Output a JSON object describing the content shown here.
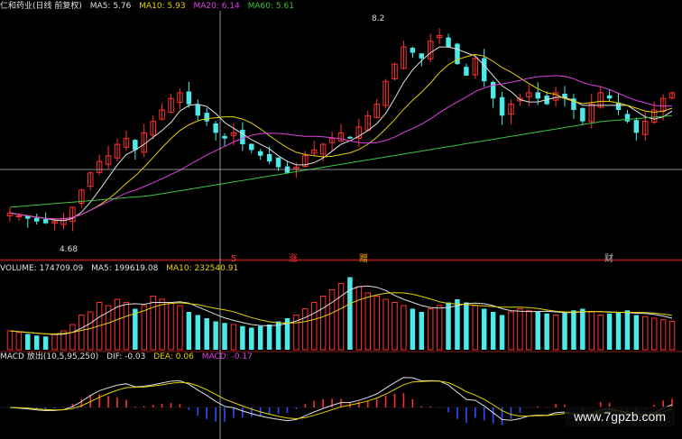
{
  "header": {
    "stock_name": "仁和药业",
    "period": "(日线 前复权)",
    "ma5": "MA5: 5.76",
    "ma10": "MA10: 5.93",
    "ma20": "MA20: 6.14",
    "ma60": "MA60: 5.61"
  },
  "volume_header": {
    "volume": "VOLUME: 174709.09",
    "ma5": "MA5: 199619.08",
    "ma10": "MA10: 232540.91"
  },
  "macd_header": {
    "name": "MACD 放出(10,5,95,250)",
    "dif": "DIF: -0.03",
    "dea": "DEA: 0.06",
    "macd": "MACD: -0.17"
  },
  "markers": {
    "high_label": "8.2",
    "low_label": "4.68",
    "event_1": "5",
    "event_2": "涨",
    "event_3": "赠",
    "event_4": "财"
  },
  "watermark": "www.7gpzb.com",
  "colors": {
    "up": "#ff3030",
    "down": "#4fe8e8",
    "ma5": "#e0e0e0",
    "ma10": "#e6d200",
    "ma20": "#e040e0",
    "ma60": "#3ec23e",
    "crosshair": "#bbbbbb",
    "grid": "#8b1a1a"
  },
  "chart_data": {
    "type": "candlestick",
    "panels": [
      "price",
      "volume",
      "macd"
    ],
    "price_range_seen": {
      "low": 4.68,
      "high": 8.2
    },
    "close_approx": [
      4.9,
      4.85,
      4.8,
      4.75,
      4.72,
      4.75,
      4.8,
      5.0,
      5.3,
      5.6,
      5.8,
      5.9,
      6.1,
      6.2,
      6.0,
      6.3,
      6.5,
      6.7,
      6.9,
      7.0,
      6.8,
      6.6,
      6.5,
      6.3,
      6.2,
      6.3,
      6.1,
      6.0,
      5.9,
      5.8,
      5.7,
      5.6,
      5.7,
      5.9,
      6.0,
      6.1,
      6.2,
      6.3,
      6.2,
      6.4,
      6.6,
      6.8,
      7.2,
      7.5,
      7.8,
      7.7,
      7.6,
      7.9,
      8.0,
      7.8,
      7.5,
      7.3,
      7.6,
      7.2,
      6.9,
      6.6,
      6.8,
      6.9,
      7.0,
      6.9,
      6.8,
      7.0,
      6.9,
      6.7,
      6.5,
      6.8,
      7.0,
      6.9,
      6.7,
      6.5,
      6.3,
      6.5,
      6.7,
      6.9,
      7.0
    ],
    "volume_approx": [
      60,
      55,
      50,
      45,
      42,
      50,
      60,
      80,
      110,
      120,
      150,
      140,
      160,
      150,
      130,
      140,
      170,
      160,
      150,
      140,
      120,
      110,
      100,
      90,
      85,
      80,
      75,
      70,
      75,
      80,
      90,
      100,
      110,
      130,
      150,
      170,
      190,
      210,
      230,
      200,
      180,
      170,
      160,
      150,
      140,
      130,
      120,
      130,
      140,
      150,
      160,
      150,
      140,
      130,
      120,
      110,
      120,
      130,
      125,
      120,
      115,
      110,
      120,
      125,
      130,
      120,
      110,
      115,
      120,
      125,
      110,
      105,
      100,
      95,
      90
    ],
    "ma60_trend": [
      5.0,
      5.05,
      5.1,
      5.15,
      5.2,
      5.3,
      5.4,
      5.5,
      5.6,
      5.7,
      5.8,
      5.9,
      6.0,
      6.1,
      6.2,
      6.3,
      6.4,
      6.5,
      6.55,
      6.6
    ]
  }
}
